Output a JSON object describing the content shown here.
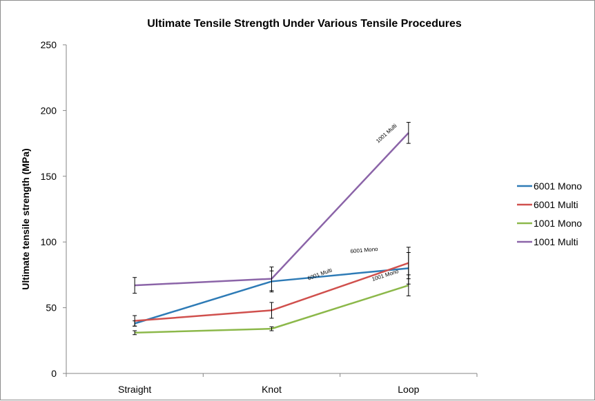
{
  "chart_data": {
    "type": "line",
    "title": "Ultimate Tensile Strength Under Various Tensile Procedures",
    "xlabel": "",
    "ylabel": "Ultimate tensile strength (MPa)",
    "categories": [
      "Straight",
      "Knot",
      "Loop"
    ],
    "ylim": [
      0,
      250
    ],
    "yticks": [
      0,
      50,
      100,
      150,
      200,
      250
    ],
    "grid": false,
    "legend": "right",
    "series": [
      {
        "name": "6001 Mono",
        "color": "#2e7bb6",
        "values": [
          38,
          70,
          80
        ],
        "errors": [
          2,
          8,
          12
        ]
      },
      {
        "name": "6001 Multi",
        "color": "#d0504d",
        "values": [
          40,
          48,
          84
        ],
        "errors": [
          4,
          6,
          12
        ]
      },
      {
        "name": "1001 Mono",
        "color": "#8cb84a",
        "values": [
          31,
          34,
          67
        ],
        "errors": [
          1.5,
          1.5,
          8
        ]
      },
      {
        "name": "1001 Multi",
        "color": "#8b64a8",
        "values": [
          67,
          72,
          183
        ],
        "errors": [
          6,
          9,
          8
        ]
      }
    ],
    "annotations": [
      {
        "text": "1001 Multi",
        "series": 3,
        "category": 2
      },
      {
        "text": "6001 Mono",
        "series": 0,
        "category": 2
      },
      {
        "text": "6001 Multi",
        "series": 1,
        "category": 2
      },
      {
        "text": "1001 Mono",
        "series": 2,
        "category": 2
      }
    ]
  }
}
